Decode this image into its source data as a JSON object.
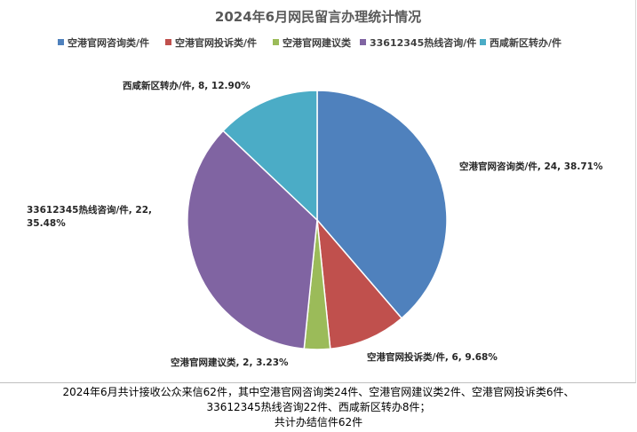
{
  "chart_data": {
    "type": "pie",
    "title": "2024年6月网民留言办理统计情况",
    "categories": [
      "空港官网咨询类/件",
      "空港官网投诉类/件",
      "空港官网建议类",
      "33612345热线咨询/件",
      "西咸新区转办/件"
    ],
    "values": [
      24,
      6,
      2,
      22,
      8
    ],
    "percentages": [
      "38.71%",
      "9.68%",
      "3.23%",
      "35.48%",
      "12.90%"
    ],
    "colors": [
      "#4f81bd",
      "#c0504d",
      "#9bbb59",
      "#8064a2",
      "#4bacc6"
    ],
    "legend_position": "top",
    "data_labels": [
      {
        "text": "空港官网咨询类/件, 24, 38.71%"
      },
      {
        "text": "空港官网投诉类/件, 6, 9.68%"
      },
      {
        "text": "空港官网建议类, 2, 3.23%"
      },
      {
        "lines": [
          "33612345热线咨询/件, 22,",
          "35.48%"
        ]
      },
      {
        "text": "西咸新区转办/件, 8, 12.90%"
      }
    ]
  },
  "footer": {
    "line1": "2024年6月共计接收公众来信62件，其中空港官网咨询类24件、空港官网建议类2件、空港官网投诉类6件、",
    "line2": "33612345热线咨询22件、西咸新区转办8件；",
    "line3": "共计办结信件62件"
  }
}
